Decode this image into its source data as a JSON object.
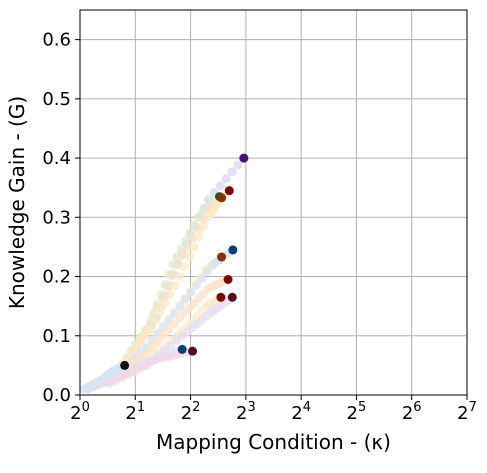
{
  "chart_data": {
    "type": "scatter",
    "title": "",
    "xlabel": "Mapping Condition - (κ)",
    "ylabel": "Knowledge Gain - (G)",
    "x_scale": "log2",
    "xlim": [
      1,
      128
    ],
    "ylim": [
      0,
      0.65
    ],
    "grid": true,
    "x_ticks": [
      1,
      2,
      4,
      8,
      16,
      32,
      64,
      128
    ],
    "x_tick_labels": [
      {
        "base": "2",
        "exp": "0"
      },
      {
        "base": "2",
        "exp": "1"
      },
      {
        "base": "2",
        "exp": "2"
      },
      {
        "base": "2",
        "exp": "3"
      },
      {
        "base": "2",
        "exp": "4"
      },
      {
        "base": "2",
        "exp": "5"
      },
      {
        "base": "2",
        "exp": "6"
      },
      {
        "base": "2",
        "exp": "7"
      }
    ],
    "y_ticks": [
      0,
      0.1,
      0.2,
      0.3,
      0.4,
      0.5,
      0.6
    ],
    "y_tick_labels": [
      "0.0",
      "0.1",
      "0.2",
      "0.3",
      "0.4",
      "0.5",
      "0.6"
    ],
    "trajectories": [
      {
        "color": "#4b0f78",
        "light": "#dcd6ef",
        "points": [
          [
            1.75,
            0.05
          ],
          [
            2.6,
            0.13
          ],
          [
            3.6,
            0.24
          ],
          [
            5.0,
            0.33
          ],
          [
            7.8,
            0.4
          ]
        ]
      },
      {
        "color": "#1f5c1f",
        "light": "#d9ecd2",
        "points": [
          [
            1.7,
            0.05
          ],
          [
            2.4,
            0.12
          ],
          [
            3.2,
            0.22
          ],
          [
            4.4,
            0.3
          ],
          [
            5.75,
            0.335
          ]
        ]
      },
      {
        "color": "#7a0a0a",
        "light": "#fbe0c6",
        "points": [
          [
            1.6,
            0.04
          ],
          [
            2.3,
            0.11
          ],
          [
            3.4,
            0.22
          ],
          [
            5.0,
            0.31
          ],
          [
            6.5,
            0.345
          ]
        ]
      },
      {
        "color": "#8b2e0a",
        "light": "#fde9c4",
        "points": [
          [
            1.6,
            0.04
          ],
          [
            2.4,
            0.11
          ],
          [
            3.5,
            0.2
          ],
          [
            5.0,
            0.3
          ],
          [
            5.9,
            0.333
          ]
        ]
      },
      {
        "color": "#8b2e0a",
        "light": "#fdecc8",
        "points": [
          [
            1.55,
            0.03
          ],
          [
            2.2,
            0.07
          ],
          [
            3.3,
            0.14
          ],
          [
            4.8,
            0.21
          ],
          [
            5.9,
            0.233
          ]
        ]
      },
      {
        "color": "#0c3f75",
        "light": "#d6e4f3",
        "points": [
          [
            1.55,
            0.03
          ],
          [
            2.3,
            0.08
          ],
          [
            3.5,
            0.15
          ],
          [
            5.3,
            0.22
          ],
          [
            6.8,
            0.245
          ]
        ]
      },
      {
        "color": "#7a0a0a",
        "light": "#fde2c8",
        "points": [
          [
            1.5,
            0.03
          ],
          [
            2.3,
            0.07
          ],
          [
            3.5,
            0.13
          ],
          [
            5.0,
            0.18
          ],
          [
            6.4,
            0.195
          ]
        ]
      },
      {
        "color": "#7a0a0a",
        "light": "#fde9cc",
        "points": [
          [
            1.45,
            0.02
          ],
          [
            2.2,
            0.05
          ],
          [
            3.4,
            0.1
          ],
          [
            4.9,
            0.15
          ],
          [
            5.85,
            0.165
          ]
        ]
      },
      {
        "color": "#5c0a1e",
        "light": "#e4def1",
        "points": [
          [
            1.45,
            0.02
          ],
          [
            2.3,
            0.05
          ],
          [
            3.6,
            0.1
          ],
          [
            5.2,
            0.14
          ],
          [
            6.75,
            0.165
          ]
        ]
      },
      {
        "color": "#0c3f75",
        "light": "#d6e4f3",
        "points": [
          [
            1.1,
            0.01
          ],
          [
            1.5,
            0.03
          ],
          [
            2.3,
            0.055
          ],
          [
            3.6,
            0.077
          ]
        ]
      },
      {
        "color": "#5c0a1e",
        "light": "#f6d6e4",
        "points": [
          [
            1.1,
            0.01
          ],
          [
            1.6,
            0.03
          ],
          [
            2.6,
            0.06
          ],
          [
            4.1,
            0.074
          ]
        ]
      },
      {
        "color": "#111111",
        "light": "#d6e4f3",
        "points": [
          [
            1.05,
            0.01
          ],
          [
            1.3,
            0.025
          ],
          [
            1.5,
            0.04
          ],
          [
            1.75,
            0.05
          ]
        ]
      }
    ]
  }
}
